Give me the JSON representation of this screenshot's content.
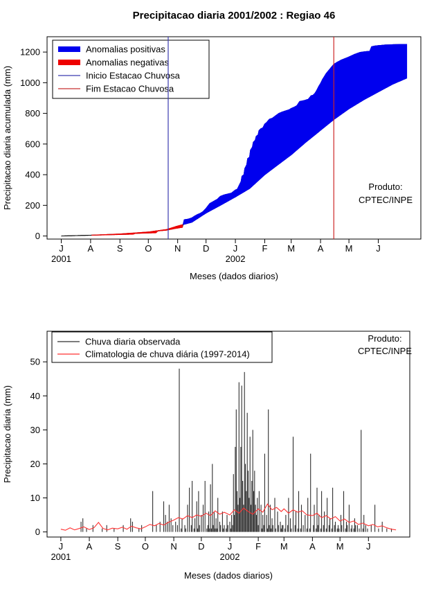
{
  "chart_data": [
    {
      "type": "area",
      "title": "Precipitacao diaria 2001/2002 : Regiao 46",
      "xlabel": "Meses (dados diarios)",
      "ylabel": "Precipitacao diaria acumulada (mm)",
      "yticks": [
        0,
        200,
        400,
        600,
        800,
        1000,
        1200
      ],
      "ylim": [
        -20,
        1300
      ],
      "xlim_days": [
        -15,
        380
      ],
      "month_ticks": [
        0,
        31,
        62,
        92,
        123,
        153,
        184,
        215,
        243,
        274,
        304,
        335
      ],
      "month_labels": [
        "J",
        "A",
        "S",
        "O",
        "N",
        "D",
        "J",
        "F",
        "M",
        "A",
        "M",
        "J"
      ],
      "year_labels": [
        {
          "text": "2001",
          "day": 0
        },
        {
          "text": "2002",
          "day": 184
        }
      ],
      "legend": [
        {
          "label": "Anomalias positivas",
          "color": "#0000ee",
          "line_width": 8
        },
        {
          "label": "Anomalias negativas",
          "color": "#ee0000",
          "line_width": 8
        },
        {
          "label": "Inicio Estacao Chuvosa",
          "color": "#3a3ab0",
          "line_width": 1.2
        },
        {
          "label": "Fim Estacao Chuvosa",
          "color": "#c83232",
          "line_width": 1.2
        }
      ],
      "annotation": [
        "Produto:",
        "CPTEC/INPE"
      ],
      "colors": {
        "positive_anomaly": "#0000ee",
        "negative_anomaly": "#ee0000",
        "season_start": "#3a3ab0",
        "season_end": "#cd2626",
        "line": "#000000"
      },
      "season_start_day": 113,
      "season_end_day": 288,
      "observed_accum": {
        "days": [
          0,
          31,
          62,
          76,
          78,
          92,
          100,
          102,
          111,
          116,
          121,
          126,
          128,
          130,
          134,
          138,
          141,
          144,
          147,
          150,
          153,
          157,
          161,
          165,
          168,
          172,
          176,
          180,
          184,
          186,
          188,
          190,
          191,
          193,
          194,
          196,
          197,
          199,
          200,
          202,
          203,
          205,
          206,
          208,
          209,
          211,
          213,
          215,
          217,
          220,
          223,
          226,
          230,
          234,
          238,
          241,
          243,
          246,
          249,
          252,
          254,
          257,
          261,
          264,
          266,
          268,
          270,
          272,
          274,
          276,
          278,
          280,
          282,
          284,
          286,
          288,
          292,
          296,
          300,
          304,
          310,
          316,
          322,
          326,
          328,
          332,
          335,
          342,
          350,
          358,
          365
        ],
        "values": [
          0,
          5,
          10,
          12,
          17,
          20,
          21,
          33,
          38,
          44,
          50,
          55,
          57,
          106,
          110,
          118,
          130,
          140,
          148,
          160,
          180,
          212,
          226,
          240,
          258,
          268,
          274,
          280,
          300,
          305,
          330,
          355,
          390,
          400,
          440,
          465,
          505,
          515,
          560,
          580,
          612,
          625,
          650,
          660,
          688,
          700,
          705,
          730,
          740,
          762,
          768,
          782,
          800,
          810,
          818,
          824,
          832,
          840,
          850,
          878,
          880,
          884,
          892,
          915,
          918,
          930,
          950,
          975,
          995,
          1020,
          1040,
          1060,
          1075,
          1090,
          1105,
          1120,
          1135,
          1148,
          1158,
          1168,
          1185,
          1198,
          1203,
          1205,
          1235,
          1240,
          1242,
          1246,
          1248,
          1250,
          1250
        ]
      },
      "climatology_accum": {
        "days": [
          0,
          31,
          62,
          92,
          111,
          123,
          138,
          153,
          168,
          184,
          199,
          215,
          230,
          243,
          258,
          274,
          288,
          304,
          320,
          335,
          350,
          365
        ],
        "values": [
          0,
          5,
          13,
          26,
          42,
          65,
          90,
          150,
          200,
          255,
          310,
          400,
          470,
          530,
          610,
          690,
          760,
          830,
          890,
          940,
          990,
          1030
        ]
      }
    },
    {
      "type": "bar",
      "xlabel": "Meses (dados diarios)",
      "ylabel": "Precipitacao diaria (mm)",
      "yticks": [
        0,
        10,
        20,
        30,
        40,
        50
      ],
      "ylim": [
        -1.5,
        59
      ],
      "xlim_days": [
        -15,
        380
      ],
      "month_ticks": [
        0,
        31,
        62,
        92,
        123,
        153,
        184,
        215,
        243,
        274,
        304,
        335
      ],
      "month_labels": [
        "J",
        "A",
        "S",
        "O",
        "N",
        "D",
        "J",
        "F",
        "M",
        "A",
        "M",
        "J"
      ],
      "year_labels": [
        {
          "text": "2001",
          "day": 0
        },
        {
          "text": "2002",
          "day": 184
        }
      ],
      "legend": [
        {
          "label": "Chuva diaria observada",
          "color": "#2e2e2e",
          "line_width": 1.3
        },
        {
          "label": "Climatologia de chuva diária (1997-2014)",
          "color": "#ff3232",
          "line_width": 1.3
        }
      ],
      "annotation": [
        "Produto:",
        "CPTEC/INPE"
      ],
      "colors": {
        "observed": "#2e2e2e",
        "climatology": "#ff3232"
      },
      "daily_observed": [
        [
          22,
          3
        ],
        [
          24,
          4
        ],
        [
          28,
          1
        ],
        [
          35,
          2
        ],
        [
          45,
          1
        ],
        [
          50,
          2
        ],
        [
          58,
          1
        ],
        [
          68,
          2
        ],
        [
          76,
          4
        ],
        [
          78,
          3
        ],
        [
          85,
          1
        ],
        [
          88,
          2
        ],
        [
          100,
          12
        ],
        [
          104,
          2
        ],
        [
          108,
          3
        ],
        [
          112,
          9
        ],
        [
          114,
          5
        ],
        [
          116,
          3
        ],
        [
          118,
          8
        ],
        [
          120,
          4
        ],
        [
          122,
          2
        ],
        [
          125,
          3
        ],
        [
          127,
          2
        ],
        [
          129,
          48
        ],
        [
          131,
          1
        ],
        [
          132,
          4
        ],
        [
          135,
          2
        ],
        [
          136,
          1
        ],
        [
          138,
          8
        ],
        [
          140,
          13
        ],
        [
          142,
          2
        ],
        [
          143,
          15
        ],
        [
          145,
          1
        ],
        [
          146,
          4
        ],
        [
          148,
          9
        ],
        [
          149,
          1
        ],
        [
          150,
          12
        ],
        [
          151,
          2
        ],
        [
          153,
          5
        ],
        [
          155,
          8
        ],
        [
          157,
          15
        ],
        [
          159,
          1
        ],
        [
          160,
          2
        ],
        [
          161,
          6
        ],
        [
          162,
          1
        ],
        [
          163,
          14
        ],
        [
          164,
          1
        ],
        [
          165,
          20
        ],
        [
          166,
          2
        ],
        [
          167,
          6
        ],
        [
          168,
          1
        ],
        [
          169,
          4
        ],
        [
          170,
          1
        ],
        [
          171,
          10
        ],
        [
          173,
          3
        ],
        [
          174,
          2
        ],
        [
          176,
          6
        ],
        [
          177,
          1
        ],
        [
          178,
          2
        ],
        [
          180,
          1
        ],
        [
          181,
          5
        ],
        [
          182,
          2
        ],
        [
          184,
          3
        ],
        [
          185,
          1
        ],
        [
          186,
          5
        ],
        [
          187,
          2
        ],
        [
          188,
          17
        ],
        [
          189,
          5
        ],
        [
          190,
          25
        ],
        [
          191,
          36
        ],
        [
          192,
          12
        ],
        [
          193,
          8
        ],
        [
          194,
          44
        ],
        [
          195,
          10
        ],
        [
          196,
          25
        ],
        [
          197,
          43
        ],
        [
          198,
          15
        ],
        [
          199,
          8
        ],
        [
          200,
          47
        ],
        [
          201,
          20
        ],
        [
          202,
          12
        ],
        [
          203,
          35
        ],
        [
          204,
          18
        ],
        [
          205,
          10
        ],
        [
          206,
          28
        ],
        [
          207,
          8
        ],
        [
          208,
          15
        ],
        [
          209,
          30
        ],
        [
          210,
          12
        ],
        [
          211,
          18
        ],
        [
          212,
          8
        ],
        [
          213,
          5
        ],
        [
          214,
          10
        ],
        [
          215,
          2
        ],
        [
          216,
          12
        ],
        [
          218,
          8
        ],
        [
          219,
          1
        ],
        [
          220,
          5
        ],
        [
          221,
          2
        ],
        [
          222,
          23
        ],
        [
          224,
          5
        ],
        [
          225,
          1
        ],
        [
          226,
          36
        ],
        [
          227,
          2
        ],
        [
          228,
          8
        ],
        [
          229,
          1
        ],
        [
          230,
          4
        ],
        [
          231,
          2
        ],
        [
          233,
          10
        ],
        [
          234,
          1
        ],
        [
          236,
          6
        ],
        [
          237,
          2
        ],
        [
          239,
          3
        ],
        [
          240,
          1
        ],
        [
          241,
          2
        ],
        [
          242,
          2
        ],
        [
          244,
          1
        ],
        [
          245,
          5
        ],
        [
          247,
          2
        ],
        [
          248,
          10
        ],
        [
          250,
          4
        ],
        [
          251,
          1
        ],
        [
          253,
          28
        ],
        [
          255,
          2
        ],
        [
          256,
          6
        ],
        [
          258,
          1
        ],
        [
          259,
          12
        ],
        [
          261,
          1
        ],
        [
          262,
          8
        ],
        [
          264,
          2
        ],
        [
          266,
          5
        ],
        [
          268,
          1
        ],
        [
          269,
          10
        ],
        [
          271,
          1
        ],
        [
          272,
          23
        ],
        [
          275,
          2
        ],
        [
          276,
          8
        ],
        [
          278,
          1
        ],
        [
          279,
          13
        ],
        [
          280,
          2
        ],
        [
          281,
          5
        ],
        [
          283,
          1
        ],
        [
          284,
          12
        ],
        [
          286,
          2
        ],
        [
          287,
          6
        ],
        [
          289,
          1
        ],
        [
          290,
          10
        ],
        [
          292,
          2
        ],
        [
          293,
          4
        ],
        [
          295,
          1
        ],
        [
          296,
          13
        ],
        [
          298,
          2
        ],
        [
          299,
          3
        ],
        [
          301,
          1
        ],
        [
          302,
          2
        ],
        [
          303,
          1
        ],
        [
          305,
          5
        ],
        [
          306,
          2
        ],
        [
          308,
          12
        ],
        [
          310,
          1
        ],
        [
          311,
          3
        ],
        [
          312,
          2
        ],
        [
          314,
          8
        ],
        [
          316,
          1
        ],
        [
          317,
          2
        ],
        [
          319,
          1
        ],
        [
          320,
          4
        ],
        [
          321,
          2
        ],
        [
          323,
          2
        ],
        [
          325,
          1
        ],
        [
          327,
          30
        ],
        [
          329,
          1
        ],
        [
          330,
          5
        ],
        [
          332,
          2
        ],
        [
          334,
          1
        ],
        [
          338,
          2
        ],
        [
          342,
          8
        ],
        [
          346,
          1
        ],
        [
          350,
          3
        ],
        [
          355,
          1
        ],
        [
          360,
          1
        ]
      ],
      "daily_climatology": {
        "days": [
          0,
          5,
          10,
          15,
          20,
          25,
          31,
          36,
          41,
          46,
          51,
          56,
          62,
          67,
          72,
          77,
          82,
          87,
          92,
          97,
          102,
          107,
          112,
          117,
          123,
          128,
          133,
          138,
          143,
          148,
          153,
          158,
          163,
          168,
          173,
          178,
          184,
          189,
          194,
          199,
          204,
          209,
          215,
          220,
          225,
          230,
          235,
          240,
          243,
          248,
          253,
          258,
          263,
          268,
          274,
          279,
          284,
          289,
          294,
          299,
          304,
          309,
          314,
          319,
          324,
          329,
          335,
          340,
          345,
          350,
          355,
          360,
          365
        ],
        "values": [
          0.8,
          0.5,
          1.2,
          0.6,
          1.0,
          1.5,
          0.7,
          1.2,
          2.8,
          1.0,
          0.6,
          1.1,
          0.9,
          1.4,
          0.8,
          1.7,
          1.2,
          0.9,
          1.5,
          2.2,
          1.8,
          2.5,
          2.0,
          2.8,
          3.5,
          4.2,
          3.8,
          4.8,
          4.2,
          5.0,
          4.6,
          5.5,
          4.8,
          6.2,
          5.2,
          5.8,
          5.0,
          6.5,
          5.5,
          7.0,
          6.0,
          5.2,
          6.8,
          5.8,
          8.2,
          6.5,
          7.2,
          6.0,
          6.8,
          5.5,
          6.5,
          5.8,
          6.2,
          5.0,
          4.8,
          5.5,
          4.2,
          4.8,
          3.8,
          4.5,
          3.2,
          3.8,
          2.8,
          3.2,
          2.2,
          2.6,
          1.8,
          2.2,
          1.5,
          1.8,
          1.2,
          0.8,
          0.6
        ]
      }
    }
  ]
}
